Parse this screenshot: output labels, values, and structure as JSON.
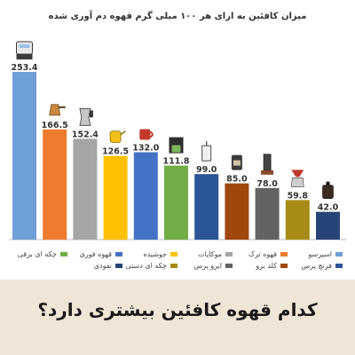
{
  "chart_data": {
    "type": "bar",
    "title": "میزان کافئین به ازای هر ۱۰۰ میلی گرم قهوه دم آوری شده",
    "categories": [
      "اسپرسو",
      "قهوه ترک",
      "موکاپات",
      "جوشیده",
      "قهوه فوری",
      "چکه ای برقی",
      "فرنچ پرس",
      "کلد برو",
      "ایرو پرس",
      "چکه ای دستی",
      "نفوذی"
    ],
    "values": [
      253.4,
      166.5,
      152.4,
      126.5,
      132.0,
      111.8,
      99.0,
      85.0,
      78.0,
      59.8,
      42.0
    ],
    "value_labels": [
      "253.4",
      "166.5",
      "152.4",
      "126.5",
      "132.0",
      "111.8",
      "99.0",
      "85.0",
      "78.0",
      "59.8",
      "42.0"
    ],
    "colors": [
      "#6e9fd6",
      "#ee7c2d",
      "#a5a5a5",
      "#ffc000",
      "#4472c4",
      "#70ad47",
      "#2a5596",
      "#9e480e",
      "#636363",
      "#a78b16",
      "#264478"
    ],
    "icons": [
      "espresso-machine-icon",
      "turkish-pot-icon",
      "moka-pot-icon",
      "kettle-icon",
      "instant-mug-icon",
      "drip-machine-icon",
      "french-press-icon",
      "cold-brew-icon",
      "aeropress-icon",
      "pour-over-icon",
      "percolator-icon"
    ],
    "ylim": [
      0,
      260
    ],
    "grid": false,
    "legend_position": "bottom"
  },
  "question": "کدام قهوه کافئین بیشتری دارد؟"
}
